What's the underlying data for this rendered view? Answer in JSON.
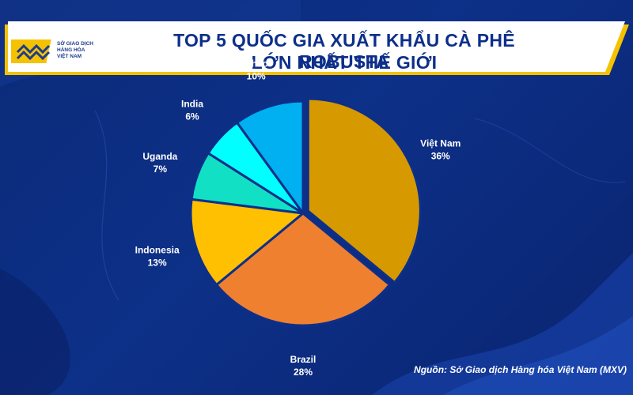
{
  "header": {
    "title_line1": "TOP 5 QUỐC GIA XUẤT KHẨU CÀ PHÊ ROBUSTA",
    "title_line2": "LỚN NHẤT THẾ GIỚI",
    "logo_line1": "SỞ GIAO DỊCH",
    "logo_line2": "HÀNG HÓA",
    "logo_line3": "VIỆT NAM"
  },
  "source": "Nguồn: Sở Giao dịch Hàng hóa Việt Nam (MXV)",
  "colors": {
    "background": "#0d3088",
    "title": "#0d2f8a",
    "accent": "#f5c200"
  },
  "chart_data": {
    "type": "pie",
    "title": "TOP 5 QUỐC GIA XUẤT KHẨU CÀ PHÊ ROBUSTA LỚN NHẤT THẾ GIỚI",
    "slices": [
      {
        "label": "Việt Nam",
        "value": 36,
        "value_label": "36%",
        "color": "#d69a00",
        "exploded": true
      },
      {
        "label": "Brazil",
        "value": 28,
        "value_label": "28%",
        "color": "#ef8030"
      },
      {
        "label": "Indonesia",
        "value": 13,
        "value_label": "13%",
        "color": "#fec000"
      },
      {
        "label": "Uganda",
        "value": 7,
        "value_label": "7%",
        "color": "#12e0c4"
      },
      {
        "label": "India",
        "value": 6,
        "value_label": "6%",
        "color": "#00ffff"
      },
      {
        "label": "Khác",
        "value": 10,
        "value_label": "10%",
        "color": "#00b0f0"
      }
    ]
  }
}
